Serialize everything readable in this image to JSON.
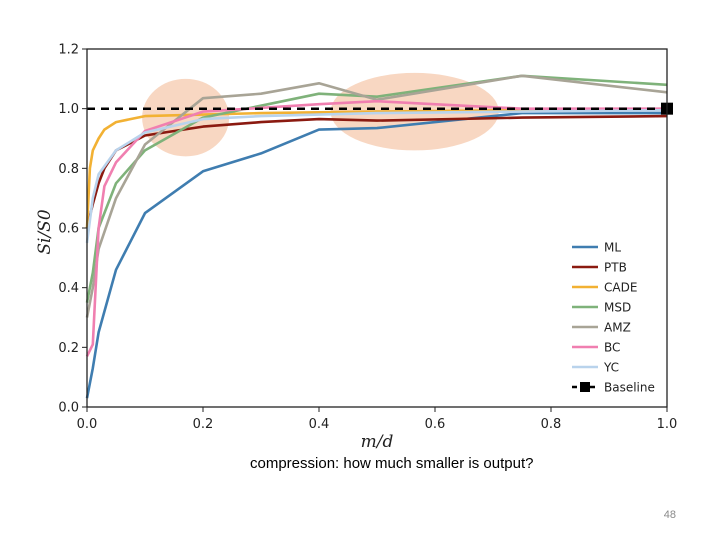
{
  "chart_data": {
    "type": "line",
    "xlabel": "m/d",
    "ylabel": "Si/S0",
    "xlim": [
      0.0,
      1.0
    ],
    "ylim": [
      0.0,
      1.2
    ],
    "xticks": [
      "0.0",
      "0.2",
      "0.4",
      "0.6",
      "0.8",
      "1.0"
    ],
    "yticks": [
      "0.0",
      "0.2",
      "0.4",
      "0.6",
      "0.8",
      "1.0",
      "1.2"
    ],
    "grid": false,
    "legend_position": "bottom-right",
    "series": [
      {
        "name": "ML",
        "color": "#3f7db0",
        "x": [
          0.0,
          0.01,
          0.02,
          0.05,
          0.1,
          0.2,
          0.3,
          0.4,
          0.5,
          0.75,
          1.0
        ],
        "y": [
          0.03,
          0.13,
          0.25,
          0.46,
          0.65,
          0.79,
          0.85,
          0.93,
          0.935,
          0.985,
          0.985
        ]
      },
      {
        "name": "PTB",
        "color": "#8b1a10",
        "x": [
          0.0,
          0.01,
          0.02,
          0.03,
          0.05,
          0.1,
          0.2,
          0.3,
          0.4,
          0.5,
          0.75,
          1.0
        ],
        "y": [
          0.6,
          0.68,
          0.75,
          0.8,
          0.86,
          0.91,
          0.94,
          0.955,
          0.965,
          0.96,
          0.97,
          0.975
        ]
      },
      {
        "name": "CADE",
        "color": "#f2b133",
        "x": [
          0.0,
          0.005,
          0.01,
          0.02,
          0.03,
          0.05,
          0.1,
          0.2,
          0.3,
          0.5,
          1.0
        ],
        "y": [
          0.6,
          0.8,
          0.86,
          0.9,
          0.93,
          0.955,
          0.975,
          0.98,
          0.985,
          0.99,
          1.0
        ]
      },
      {
        "name": "MSD",
        "color": "#7fb27a",
        "x": [
          0.0,
          0.01,
          0.02,
          0.05,
          0.1,
          0.2,
          0.3,
          0.4,
          0.5,
          0.75,
          1.0
        ],
        "y": [
          0.35,
          0.45,
          0.6,
          0.75,
          0.86,
          0.97,
          1.01,
          1.05,
          1.04,
          1.11,
          1.08
        ]
      },
      {
        "name": "AMZ",
        "color": "#a8a496",
        "x": [
          0.0,
          0.01,
          0.02,
          0.05,
          0.1,
          0.2,
          0.3,
          0.4,
          0.5,
          0.75,
          1.0
        ],
        "y": [
          0.3,
          0.4,
          0.53,
          0.7,
          0.88,
          1.035,
          1.05,
          1.085,
          1.03,
          1.11,
          1.055
        ]
      },
      {
        "name": "BC",
        "color": "#f07fb0",
        "x": [
          0.0,
          0.01,
          0.02,
          0.03,
          0.05,
          0.1,
          0.2,
          0.4,
          0.5,
          0.75,
          1.0
        ],
        "y": [
          0.17,
          0.21,
          0.6,
          0.74,
          0.82,
          0.925,
          0.99,
          1.015,
          1.025,
          1.0,
          1.0
        ]
      },
      {
        "name": "YC",
        "color": "#b9d3ec",
        "x": [
          0.0,
          0.01,
          0.02,
          0.05,
          0.1,
          0.2,
          0.3,
          0.4,
          0.5,
          0.75,
          1.0
        ],
        "y": [
          0.55,
          0.7,
          0.78,
          0.86,
          0.92,
          0.965,
          0.975,
          0.98,
          0.985,
          0.99,
          0.995
        ]
      },
      {
        "name": "Baseline",
        "color": "#000000",
        "dashed": true,
        "marker": "square",
        "x": [
          0.0,
          1.0
        ],
        "y": [
          1.0,
          1.0
        ]
      }
    ],
    "highlights": [
      {
        "cx": 0.17,
        "cy": 0.97,
        "rx": 0.075,
        "ry": 0.13,
        "color": "#f5c6a8"
      },
      {
        "cx": 0.565,
        "cy": 0.99,
        "rx": 0.145,
        "ry": 0.13,
        "color": "#f5c6a8"
      }
    ]
  },
  "caption": "compression: how much smaller is output?",
  "page_number": "48"
}
